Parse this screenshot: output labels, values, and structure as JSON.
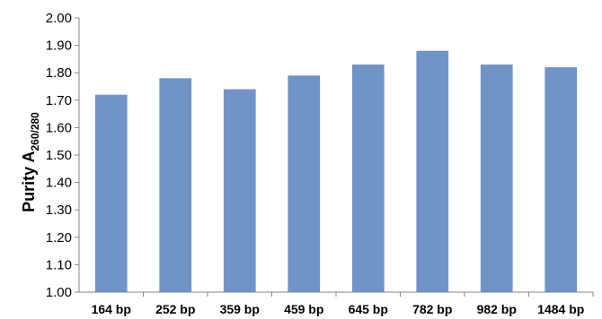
{
  "chart_data": {
    "type": "bar",
    "title": "",
    "xlabel": "",
    "ylabel": {
      "main": "Purity A",
      "subscript": "260/280"
    },
    "categories": [
      "164 bp",
      "252 bp",
      "359 bp",
      "459 bp",
      "645 bp",
      "782 bp",
      "982 bp",
      "1484 bp"
    ],
    "values": [
      1.72,
      1.78,
      1.74,
      1.79,
      1.83,
      1.88,
      1.83,
      1.82
    ],
    "ylim": [
      1.0,
      2.0
    ],
    "yticks": [
      "1.00",
      "1.10",
      "1.20",
      "1.30",
      "1.40",
      "1.50",
      "1.60",
      "1.70",
      "1.80",
      "1.90",
      "2.00"
    ],
    "grid": false,
    "legend": "none",
    "colors": {
      "bar": "#7094C8",
      "axis": "#868686"
    }
  }
}
